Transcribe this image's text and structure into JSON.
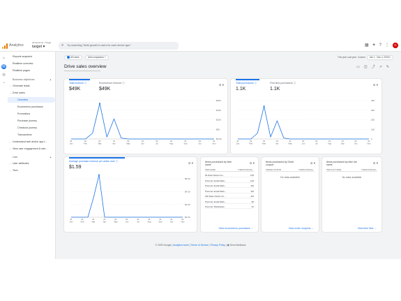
{
  "topbar": {
    "brand": "Analytics",
    "account_small": "All accounts › Target",
    "account_name": "target ▾",
    "search_placeholder": "Try searching \"MoM growth in users for each device type\"",
    "avatar_letter": "G"
  },
  "nav": {
    "items": [
      {
        "label": "Reports snapshot",
        "level": 0
      },
      {
        "label": "Realtime overview",
        "level": 0
      },
      {
        "label": "Realtime pages",
        "level": 0
      }
    ],
    "business_objectives": "Business objectives",
    "generate_leads": "Generate leads",
    "drive_sales": "Drive sales",
    "drive_sales_children": [
      "Overview",
      "Ecommerce purchases",
      "Promotions",
      "Purchase journey",
      "Checkout journey",
      "Transactions"
    ],
    "understand": "Understand web and/or app t...",
    "engagement": "View user engagement & rete...",
    "user_section": "User",
    "user_attributes": "User attributes",
    "tech": "Tech"
  },
  "subbar": {
    "filter_chip": "All Users",
    "add_comparison": "Add comparison +",
    "date_prefix": "Last 30 days",
    "date_label": "Custom",
    "date_range": "Jan 1 - Nov 4, 2025 ▾",
    "last_year_label": "This year   Last year"
  },
  "page": {
    "title": "Drive sales overview"
  },
  "card1": {
    "metric1_label": "Total revenue ⓘ",
    "metric1_value": "$49K",
    "metric2_label": "Ecommerce revenue ⓘ",
    "metric2_value": "$49K",
    "tools": "⊘ ▾",
    "y_ticks": [
      "$20K",
      "$15K",
      "$10K",
      "$5K",
      "$0.00"
    ],
    "x_ticks": [
      "01 Jan",
      "01 Feb",
      "01 Mar",
      "01 Apr",
      "01 May",
      "01 Jun",
      "01 Jul",
      "01 Aug",
      "01 Sep",
      "01 Oct",
      "01 Nov"
    ]
  },
  "card2": {
    "metric1_label": "Total purchasers ⓘ",
    "metric1_value": "1.1K",
    "metric2_label": "First time purchasers ⓘ",
    "metric2_value": "1.1K",
    "tools": "⊘ ▾",
    "y_ticks": [
      "400",
      "300",
      "200",
      "100",
      "0"
    ],
    "x_ticks": [
      "01 Jan",
      "01 Feb",
      "01 Mar",
      "01 Apr",
      "01 May",
      "01 Jun",
      "01 Jul",
      "01 Aug",
      "01 Sep",
      "01 Oct",
      "01 Nov"
    ]
  },
  "card3": {
    "metric_label": "Average purchase revenue per active user ⓘ",
    "metric_value": "$1.59",
    "tools": "⊘ ▾",
    "y_ticks": [
      "$6.00",
      "$4.00",
      "$2.00",
      "$0.00"
    ],
    "x_ticks": [
      "01 Jan",
      "01 Feb",
      "01 Mar",
      "01 Apr",
      "01 May",
      "01 Jun",
      "01 Jul",
      "01 Aug",
      "01 Sep",
      "01 Oct",
      "01 Nov"
    ]
  },
  "table1": {
    "title": "Items purchased by Item name",
    "tools": "⊘ ▾",
    "col1": "ITEM NAME",
    "col2": "ITEMS PURCHA...",
    "rows": [
      {
        "name": "94 Data Visitors Fo...",
        "value": "135"
      },
      {
        "name": "Premium Email Mark...",
        "value": "126"
      },
      {
        "name": "Premium Email Mark...",
        "value": "119"
      },
      {
        "name": "Premium Email Mark...",
        "value": "115"
      },
      {
        "name": "200 Data Visitors Fo...",
        "value": "113"
      },
      {
        "name": "Premium Email Mark...",
        "value": "96"
      },
      {
        "name": "Premium Marketplac...",
        "value": "91"
      }
    ],
    "link": "View ecommerce purchases →"
  },
  "table2": {
    "title": "Items purchased by Order coupon",
    "tools": "⊘ ▾",
    "col1": "ORDER COUPON",
    "col2": "ITEMS PURCHA...",
    "no_data": "No data available",
    "link": "View order coupons →"
  },
  "table3": {
    "title": "Items purchased by Item list name",
    "tools": "⊘ ▾",
    "col1": "ITEM LIST NAME",
    "col2": "ITEMS PURCHA...",
    "no_data": "No data available",
    "link": "View item lists →"
  },
  "footer": {
    "copyright": "© 2025 Google |",
    "home": "Analytics home",
    "terms": "Terms of Service",
    "privacy": "Privacy Policy",
    "feedback": "▣ Send feedback"
  },
  "chart_data": [
    {
      "type": "line",
      "x": [
        "01 Jan",
        "15 Jan",
        "01 Feb",
        "15 Feb",
        "01 Mar",
        "15 Mar",
        "01 Apr",
        "15 Apr",
        "01 May",
        "15 May",
        "01 Jun",
        "15 Jun",
        "01 Jul",
        "15 Jul",
        "01 Aug",
        "15 Aug",
        "01 Sep",
        "15 Sep",
        "01 Oct",
        "15 Oct",
        "01 Nov"
      ],
      "series": [
        {
          "values": [
            0,
            0,
            0,
            3000,
            18500,
            1000,
            10500,
            500,
            0,
            0,
            0,
            0,
            0,
            0,
            0,
            0,
            0,
            0,
            0,
            0,
            0
          ]
        }
      ],
      "ylim": [
        0,
        20000
      ]
    },
    {
      "type": "line",
      "x": [
        "01 Jan",
        "15 Jan",
        "01 Feb",
        "15 Feb",
        "01 Mar",
        "15 Mar",
        "01 Apr",
        "15 Apr",
        "01 May",
        "15 May",
        "01 Jun",
        "15 Jun",
        "01 Jul",
        "15 Jul",
        "01 Aug",
        "15 Aug",
        "01 Sep",
        "15 Sep",
        "01 Oct",
        "15 Oct",
        "01 Nov"
      ],
      "series": [
        {
          "values": [
            0,
            0,
            0,
            60,
            340,
            20,
            190,
            10,
            0,
            0,
            0,
            0,
            0,
            0,
            0,
            0,
            0,
            0,
            0,
            0,
            0
          ]
        }
      ],
      "ylim": [
        0,
        400
      ]
    },
    {
      "type": "line",
      "x": [
        "01 Jan",
        "15 Jan",
        "01 Feb",
        "15 Feb",
        "01 Mar",
        "15 Mar",
        "01 Apr",
        "15 Apr",
        "01 May",
        "15 May",
        "01 Jun",
        "15 Jun",
        "01 Jul",
        "15 Jul",
        "01 Aug",
        "15 Aug",
        "01 Sep",
        "15 Sep",
        "01 Oct",
        "15 Oct",
        "01 Nov"
      ],
      "series": [
        {
          "values": [
            0,
            0,
            0,
            0,
            3000,
            6600,
            0,
            0,
            0,
            0,
            0,
            0,
            0,
            0,
            0,
            0,
            0,
            0,
            0,
            0,
            0
          ]
        }
      ],
      "ylim": [
        0,
        6000
      ]
    }
  ]
}
